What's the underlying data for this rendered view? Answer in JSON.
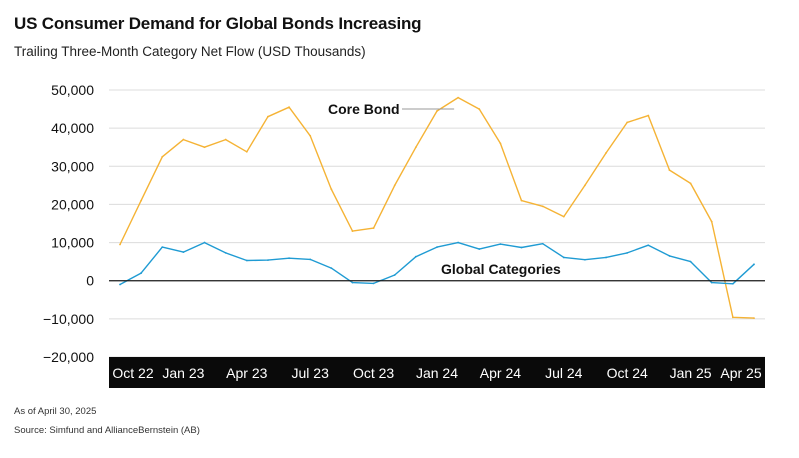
{
  "title": "US Consumer Demand for Global Bonds Increasing",
  "subtitle": "Trailing Three-Month Category Net Flow (USD Thousands)",
  "footnotes": {
    "as_of": "As of April 30, 2025",
    "source": "Source: Simfund and AllianceBernstein (AB)"
  },
  "colors": {
    "core_bond": "#f5b335",
    "global_categories": "#1f9bd3",
    "axis_band": "#0a0a0a",
    "grid": "#dcdcdc",
    "zero_line": "#1a1a1a"
  },
  "chart_data": {
    "type": "line",
    "title": "US Consumer Demand for Global Bonds Increasing",
    "ylabel": "Trailing Three-Month Category Net Flow (USD Thousands)",
    "ylim": [
      -20000,
      50000
    ],
    "yticks": [
      50000,
      40000,
      30000,
      20000,
      10000,
      0,
      -10000,
      -20000
    ],
    "ytick_labels": [
      "50,000",
      "40,000",
      "30,000",
      "20,000",
      "10,000",
      "0",
      "−10,000",
      "−20,000"
    ],
    "grid": true,
    "x_labels": [
      {
        "index": 0,
        "label": "Oct 22"
      },
      {
        "index": 3,
        "label": "Jan 23"
      },
      {
        "index": 6,
        "label": "Apr 23"
      },
      {
        "index": 9,
        "label": "Jul 23"
      },
      {
        "index": 12,
        "label": "Oct 23"
      },
      {
        "index": 15,
        "label": "Jan 24"
      },
      {
        "index": 18,
        "label": "Apr 24"
      },
      {
        "index": 21,
        "label": "Jul 24"
      },
      {
        "index": 24,
        "label": "Oct 24"
      },
      {
        "index": 27,
        "label": "Jan 25"
      },
      {
        "index": 30,
        "label": "Apr 25"
      }
    ],
    "series": [
      {
        "name": "Core Bond",
        "color": "#f5b335",
        "values": [
          9500,
          21000,
          32500,
          37000,
          35000,
          37000,
          33800,
          43000,
          45500,
          38000,
          24000,
          13000,
          13800,
          25000,
          35000,
          44500,
          48000,
          45000,
          36000,
          21000,
          19500,
          16800,
          25000,
          33500,
          41500,
          43300,
          29000,
          25500,
          15500,
          -9600,
          -9800
        ]
      },
      {
        "name": "Global Categories",
        "color": "#1f9bd3",
        "values": [
          -1000,
          2000,
          8800,
          7500,
          10000,
          7300,
          5300,
          5400,
          5900,
          5600,
          3300,
          -500,
          -700,
          1500,
          6300,
          8800,
          10000,
          8300,
          9600,
          8700,
          9700,
          6100,
          5500,
          6100,
          7300,
          9300,
          6500,
          5000,
          -500,
          -800,
          4300
        ]
      }
    ],
    "annotations": [
      {
        "text": "Core Bond",
        "series": "Core Bond",
        "index": 16
      },
      {
        "text": "Global Categories",
        "series": "Global Categories",
        "index": 18
      }
    ]
  }
}
